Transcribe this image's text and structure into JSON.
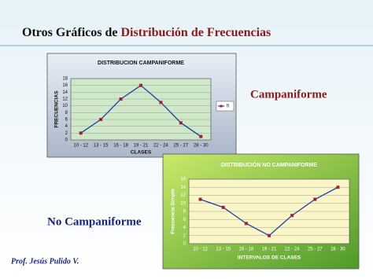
{
  "slide": {
    "title_part1": "Otros Gráficos de",
    "title_part2": "Distribución de Frecuencias",
    "label_bell": "Campaniforme",
    "label_not_bell": "No Campaniforme",
    "author": "Prof. Jesús Pulido V."
  },
  "chart_data": [
    {
      "type": "line",
      "title": "DISTRIBUCION CAMPANIFORME",
      "x_label": "CLASES",
      "y_label": "FRECUENCIAS",
      "categories": [
        "10 - 12",
        "13 - 15",
        "16 - 18",
        "19 - 21",
        "22 - 24",
        "25 - 27",
        "28 - 30"
      ],
      "series": [
        {
          "name": "fi",
          "color": "#1f3fa8",
          "marker_color": "#a0203a",
          "values": [
            2,
            6,
            12,
            16,
            11,
            5,
            1
          ]
        }
      ],
      "ylim": [
        0,
        18
      ],
      "yticks": [
        0,
        2,
        4,
        6,
        8,
        10,
        12,
        14,
        16,
        18
      ],
      "grid": true,
      "legend": "right",
      "plot_color": "#cfe8c8"
    },
    {
      "type": "line",
      "title": "DISTRIBUCIÓN NO CAMPANIFORME",
      "x_label": "INTERVALOS DE CLASES",
      "y_label": "Frecuencia Simple",
      "categories": [
        "10 - 12",
        "13 - 15",
        "16 - 18",
        "19 - 21",
        "22 - 24",
        "25 - 27",
        "28 - 30"
      ],
      "values": [
        11,
        9,
        5,
        2,
        7,
        11,
        14
      ],
      "color": "#1f3fa8",
      "marker_color": "#a0203a",
      "ylim": [
        0,
        16
      ],
      "yticks": [
        0,
        2,
        4,
        6,
        8,
        10,
        12,
        14,
        16
      ],
      "grid": true,
      "plot_color": "#fbf6c8"
    }
  ]
}
